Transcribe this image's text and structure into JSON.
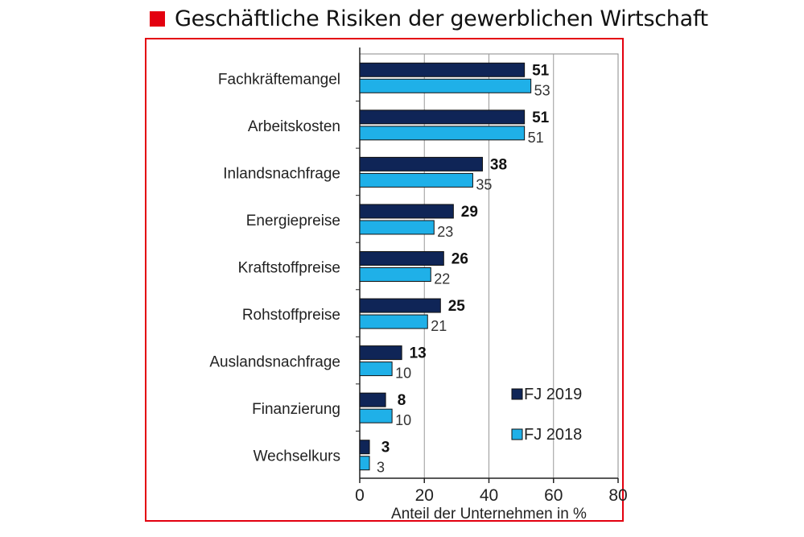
{
  "chart_data": {
    "type": "bar",
    "orientation": "horizontal",
    "title": "Geschäftliche Risiken der gewerblichen Wirtschaft",
    "categories": [
      "Fachkräftemangel",
      "Arbeitskosten",
      "Inlandsnachfrage",
      "Energiepreise",
      "Kraftstoffpreise",
      "Rohstoffpreise",
      "Auslandsnachfrage",
      "Finanzierung",
      "Wechselkurs"
    ],
    "series": [
      {
        "name": "FJ 2019",
        "color": "#0f2557",
        "values": [
          51,
          51,
          38,
          29,
          26,
          25,
          13,
          8,
          3
        ]
      },
      {
        "name": "FJ 2018",
        "color": "#1fb0e8",
        "values": [
          53,
          51,
          35,
          23,
          22,
          21,
          10,
          10,
          3
        ]
      }
    ],
    "xlabel": "Anteil der Unternehmen  in %",
    "xlim": [
      0,
      80
    ],
    "xticks": [
      "0",
      "20",
      "40",
      "60",
      "80"
    ],
    "grid": "vertical",
    "legend": "bottom-right",
    "accent_color": "#e3000f"
  }
}
